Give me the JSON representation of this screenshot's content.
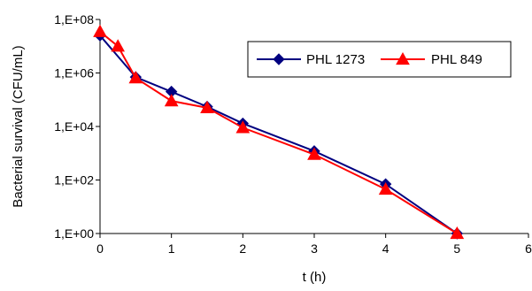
{
  "chart_data": {
    "type": "line",
    "title": "",
    "xlabel": "t (h)",
    "ylabel": "Bacterial survival (CFU/mL)",
    "xlim": [
      0,
      6
    ],
    "ylim_log10": [
      0,
      8
    ],
    "y_scale": "log",
    "x_ticks": [
      0,
      1,
      2,
      3,
      4,
      5,
      6
    ],
    "x_tick_labels": [
      "0",
      "1",
      "2",
      "3",
      "4",
      "5",
      "6"
    ],
    "y_ticks_log10": [
      0,
      2,
      4,
      6,
      8
    ],
    "y_tick_labels": [
      "1,E+00",
      "1,E+02",
      "1,E+04",
      "1,E+06",
      "1,E+08"
    ],
    "grid": false,
    "legend_position": "top-right",
    "series": [
      {
        "name": "PHL 1273",
        "color": "#000080",
        "marker": "diamond",
        "x": [
          0,
          0.5,
          1,
          1.5,
          2,
          3,
          4,
          5
        ],
        "y": [
          25000000,
          700000,
          200000,
          55000,
          13000,
          1200,
          70,
          1
        ]
      },
      {
        "name": "PHL 849",
        "color": "#ff0000",
        "marker": "triangle",
        "x": [
          0,
          0.25,
          0.5,
          1,
          1.5,
          2,
          3,
          4,
          5
        ],
        "y": [
          35000000,
          10000000,
          650000,
          90000,
          50000,
          9000,
          900,
          45,
          1
        ]
      }
    ]
  }
}
